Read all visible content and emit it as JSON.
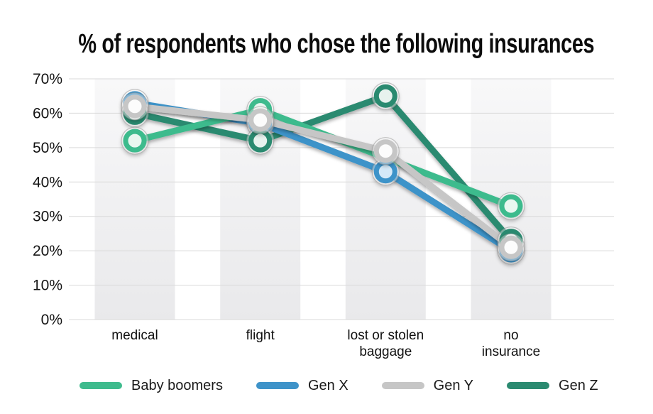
{
  "title": "% of respondents who chose the following insurances",
  "chart_data": {
    "type": "line",
    "title": "% of respondents who chose the following insurances",
    "categories": [
      "medical",
      "flight",
      "lost or stolen baggage",
      "no insurance"
    ],
    "category_label_lines": [
      [
        "medical"
      ],
      [
        "flight"
      ],
      [
        "lost or stolen",
        "baggage"
      ],
      [
        "no",
        "insurance"
      ]
    ],
    "series": [
      {
        "name": "Baby boomers",
        "color": "#3EBB8D",
        "marker_fill": "#E9F7F0",
        "values": [
          52,
          61,
          47,
          33
        ],
        "markers": [
          1,
          1,
          0,
          1
        ]
      },
      {
        "name": "Gen X",
        "color": "#3E93C9",
        "marker_fill": "#D5E9F8",
        "values": [
          63,
          57,
          43,
          20
        ],
        "markers": [
          1,
          1,
          1,
          1
        ]
      },
      {
        "name": "Gen Y",
        "color": "#C6C6C6",
        "marker_fill": "#FCFCFC",
        "values": [
          62,
          58,
          49,
          21
        ],
        "markers": [
          1,
          1,
          1,
          1
        ]
      },
      {
        "name": "Gen Z",
        "color": "#2B8A70",
        "marker_fill": "#E7F2EE",
        "values": [
          60,
          52,
          65,
          23
        ],
        "markers": [
          1,
          1,
          1,
          1
        ]
      }
    ],
    "ylim": [
      0,
      70
    ],
    "ytick_step": 10,
    "ytick_labels": [
      "0%",
      "10%",
      "20%",
      "30%",
      "40%",
      "50%",
      "60%",
      "70%"
    ],
    "grid": true,
    "legend_position": "bottom",
    "z_order_lines": [
      3,
      1,
      0,
      2
    ],
    "z_order_markers": [
      1,
      3,
      0,
      2
    ],
    "colors": {
      "gridline": "#D9D9D9",
      "band_top": "#F8F8F9",
      "band_bottom": "#E9E9EB",
      "text": "#141414",
      "background": "#FFFFFF"
    }
  }
}
